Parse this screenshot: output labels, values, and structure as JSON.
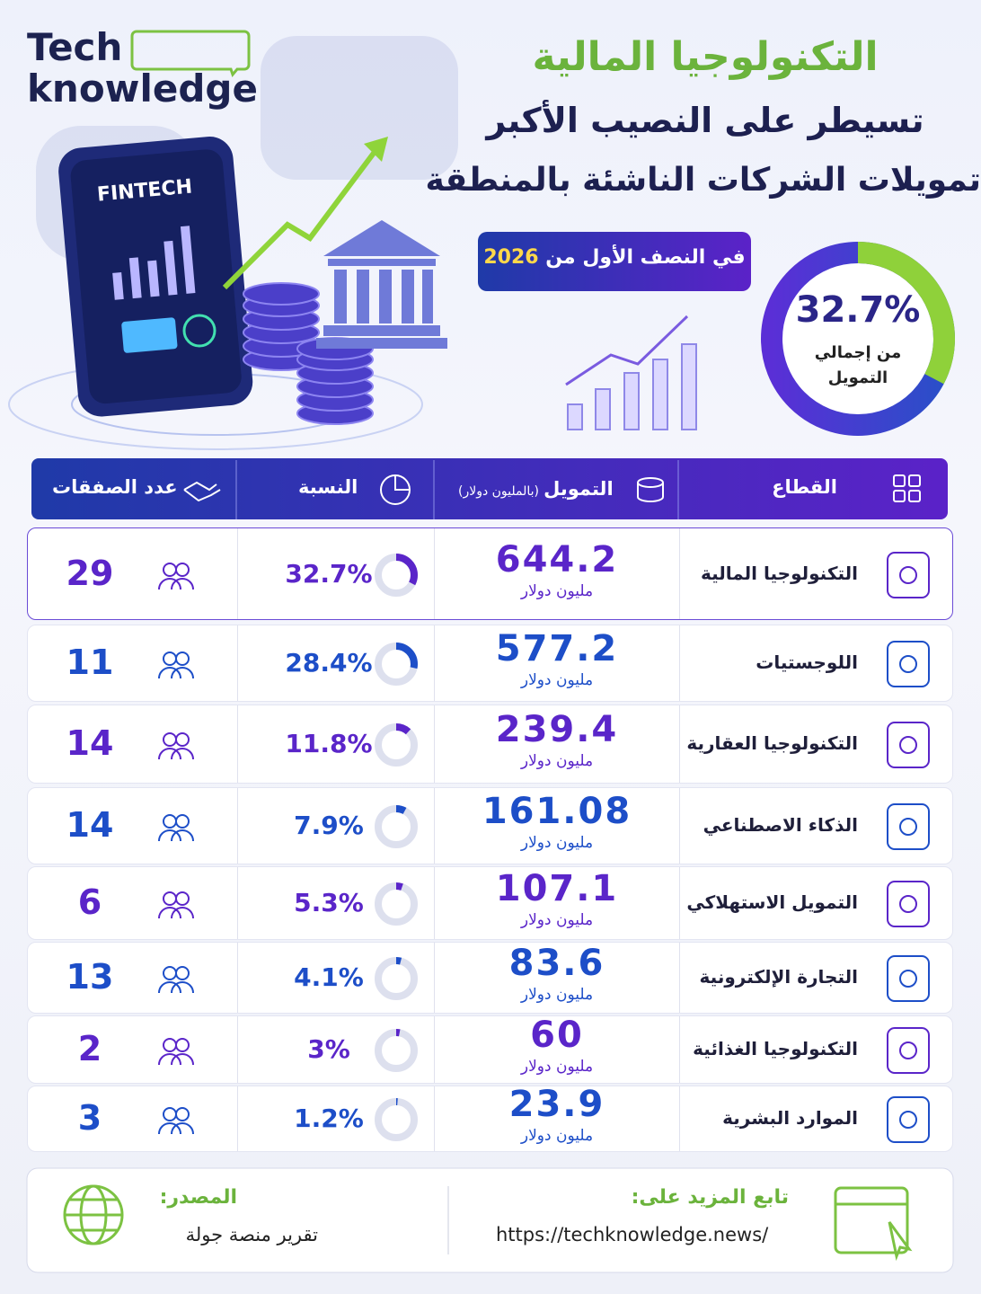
{
  "header": {
    "logo_line1": "Tech",
    "logo_line2": "knowledge",
    "title": "التكنولوجيا المالية",
    "subtitle_line1": "تسيطر على النصيب الأكبر",
    "subtitle_line2": "تمويلات الشركات الناشئة بالمنطقة",
    "badge_text": "في النصف الأول من",
    "badge_year": "2026",
    "phone_label": "FINTECH",
    "share": {
      "value": 32.7,
      "label": "32.7%"
    },
    "share_caption_line1": "من إجمالي",
    "share_caption_line2": "التمويل"
  },
  "table": {
    "columns": {
      "sector": "القطاع",
      "funding": "التمويل",
      "funding_unit": "(بالمليون دولار)",
      "share": "النسبة",
      "deals": "عدد الصفقات"
    },
    "rows": [
      {
        "sector": "التكنولوجيا المالية",
        "funding": 644.2,
        "unit": "مليون دولار",
        "share": {
          "value": 32.7,
          "label": "32.7%"
        },
        "deals": 29
      },
      {
        "sector": "اللوجستيات",
        "funding": 577.2,
        "unit": "مليون دولار",
        "share": {
          "value": 28.4,
          "label": "28.4%"
        },
        "deals": 11
      },
      {
        "sector": "التكنولوجيا العقارية",
        "funding": 239.4,
        "unit": "مليون دولار",
        "share": {
          "value": 11.8,
          "label": "11.8%"
        },
        "deals": 14
      },
      {
        "sector": "الذكاء الاصطناعي",
        "funding": 161.08,
        "unit": "مليون دولار",
        "share": {
          "value": 7.9,
          "label": "7.9%"
        },
        "deals": 14
      },
      {
        "sector": "التمويل الاستهلاكي",
        "funding": 107.1,
        "unit": "مليون دولار",
        "share": {
          "value": 5.3,
          "label": "5.3%"
        },
        "deals": 6
      },
      {
        "sector": "التجارة الإلكترونية",
        "funding": 83.6,
        "unit": "مليون دولار",
        "share": {
          "value": 4.1,
          "label": "4.1%"
        },
        "deals": 13
      },
      {
        "sector": "التكنولوجيا الغذائية",
        "funding": 60,
        "unit": "مليون دولار",
        "share": {
          "value": 3,
          "label": "3%"
        },
        "deals": 2
      },
      {
        "sector": "الموارد البشرية",
        "funding": 23.9,
        "unit": "مليون دولار",
        "share": {
          "value": 1.2,
          "label": "1.2%"
        },
        "deals": 3
      }
    ]
  },
  "footer": {
    "source_label": "المصدر:",
    "source": "تقرير منصة جولة",
    "follow_label": "تابع المزيد على:",
    "url": "https://techknowledge.news/"
  }
}
